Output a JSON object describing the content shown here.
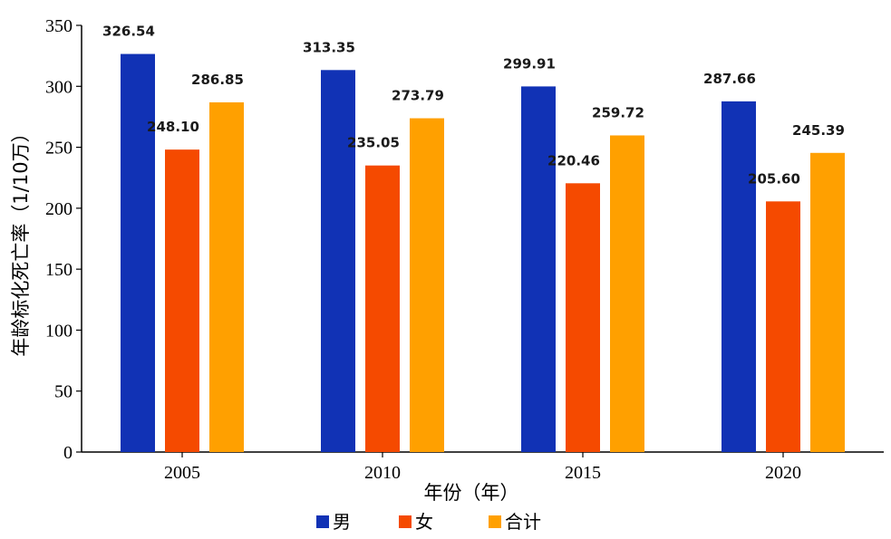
{
  "chart_data": {
    "type": "bar",
    "categories": [
      "2005",
      "2010",
      "2015",
      "2020"
    ],
    "series": [
      {
        "name": "男",
        "color": "#1132b5",
        "values": [
          326.54,
          313.35,
          299.91,
          287.66
        ]
      },
      {
        "name": "女",
        "color": "#f54a00",
        "values": [
          248.1,
          235.05,
          220.46,
          205.6
        ]
      },
      {
        "name": "合计",
        "color": "#ffa000",
        "values": [
          286.85,
          273.79,
          259.72,
          245.39
        ]
      }
    ],
    "value_labels": [
      [
        "326.54",
        "313.35",
        "299.91",
        "287.66"
      ],
      [
        "248.10",
        "235.05",
        "220.46",
        "205.60"
      ],
      [
        "286.85",
        "273.79",
        "259.72",
        "245.39"
      ]
    ],
    "xlabel": "年份（年）",
    "ylabel": "年龄标化死亡率（1/10万）",
    "ylim": [
      0,
      350
    ],
    "yticks": [
      "0",
      "50",
      "100",
      "150",
      "200",
      "250",
      "300",
      "350"
    ],
    "grid": false,
    "legend_position": "bottom"
  }
}
